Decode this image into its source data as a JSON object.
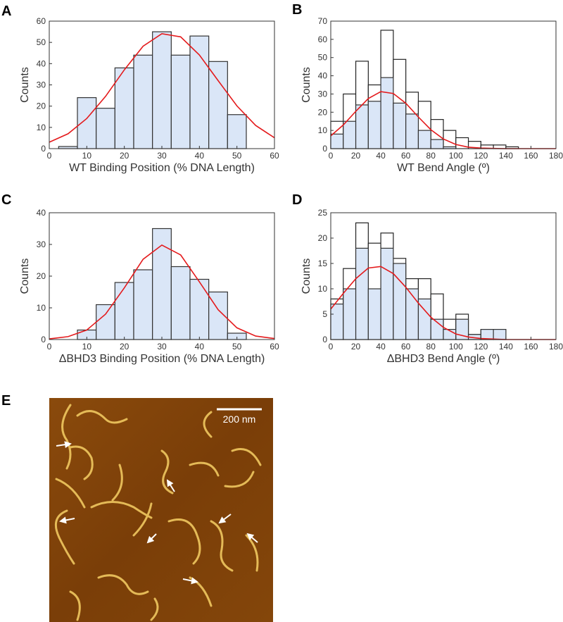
{
  "chart_data": [
    {
      "type": "histogram",
      "panel": "A",
      "xlabel": "WT Binding Position (% DNA Length)",
      "ylabel": "Counts",
      "bins": [
        2.5,
        7.5,
        12.5,
        17.5,
        22.5,
        27.5,
        32.5,
        37.5,
        42.5,
        47.5,
        52.5
      ],
      "series": [
        {
          "color": "#dae6f7",
          "edgecolor": "#333333",
          "values": [
            1,
            24,
            19,
            38,
            44,
            55,
            44,
            53,
            41,
            16
          ]
        }
      ],
      "fit": {
        "color": "#e41a1c",
        "x": [
          0,
          5,
          10,
          15,
          20,
          25,
          30,
          35,
          40,
          45,
          50,
          55,
          60
        ],
        "values": [
          3.0,
          7.0,
          14.2,
          24.6,
          37.1,
          48.2,
          54.1,
          52.6,
          44.1,
          32.0,
          20.1,
          10.9,
          5.1
        ]
      },
      "xlim": [
        0,
        60
      ],
      "ylim": [
        0,
        60
      ],
      "xticks": [
        0,
        10,
        20,
        30,
        40,
        50,
        60
      ],
      "yticks": [
        0,
        10,
        20,
        30,
        40,
        50,
        60
      ]
    },
    {
      "type": "histogram",
      "panel": "B",
      "xlabel": "WT Bend Angle (º)",
      "ylabel": "Counts",
      "bins": [
        0,
        10,
        20,
        30,
        40,
        50,
        60,
        70,
        80,
        90,
        100,
        110,
        120,
        130,
        140,
        150,
        160,
        170,
        180
      ],
      "series": [
        {
          "color": "#ffffff",
          "edgecolor": "#222222",
          "values": [
            15,
            30,
            48,
            35,
            65,
            49,
            31,
            26,
            16,
            10,
            6,
            4,
            2,
            2,
            1,
            0,
            0,
            0
          ]
        },
        {
          "color": "#dae6f7",
          "edgecolor": "#333333",
          "values": [
            8,
            15,
            24,
            26,
            39,
            25,
            19,
            10,
            5,
            1,
            0,
            0,
            0,
            0,
            0,
            0,
            0,
            0
          ]
        }
      ],
      "fit": {
        "color": "#e41a1c",
        "x": [
          0,
          10,
          20,
          30,
          40,
          50,
          60,
          70,
          80,
          90,
          100,
          110,
          120,
          130,
          140,
          150,
          160,
          170,
          180
        ],
        "values": [
          7.0,
          13.0,
          20.5,
          27.5,
          31.3,
          30.3,
          24.9,
          17.4,
          10.4,
          5.3,
          2.3,
          0.8,
          0.3,
          0.1,
          0,
          0,
          0,
          0,
          0
        ]
      },
      "xlim": [
        0,
        180
      ],
      "ylim": [
        0,
        70
      ],
      "xticks": [
        0,
        20,
        40,
        60,
        80,
        100,
        120,
        140,
        160,
        180
      ],
      "yticks": [
        0,
        10,
        20,
        30,
        40,
        50,
        60,
        70
      ]
    },
    {
      "type": "histogram",
      "panel": "C",
      "xlabel": "ΔBHD3 Binding Position (% DNA Length)",
      "ylabel": "Counts",
      "bins": [
        7.5,
        12.5,
        17.5,
        22.5,
        27.5,
        32.5,
        37.5,
        42.5,
        47.5,
        52.5
      ],
      "series": [
        {
          "color": "#dae6f7",
          "edgecolor": "#333333",
          "values": [
            3,
            11,
            18,
            22,
            35,
            23,
            19,
            15,
            2
          ]
        }
      ],
      "fit": {
        "color": "#e41a1c",
        "x": [
          0,
          5,
          10,
          15,
          20,
          25,
          30,
          35,
          40,
          45,
          50,
          55,
          60
        ],
        "values": [
          0.2,
          0.9,
          3.0,
          8.0,
          16.3,
          25.3,
          29.8,
          26.7,
          18.2,
          9.4,
          3.7,
          1.1,
          0.3
        ]
      },
      "xlim": [
        0,
        60
      ],
      "ylim": [
        0,
        40
      ],
      "xticks": [
        0,
        10,
        20,
        30,
        40,
        50,
        60
      ],
      "yticks": [
        0,
        10,
        20,
        30,
        40
      ]
    },
    {
      "type": "histogram",
      "panel": "D",
      "xlabel": "ΔBHD3 Bend Angle (º)",
      "ylabel": "Counts",
      "bins": [
        0,
        10,
        20,
        30,
        40,
        50,
        60,
        70,
        80,
        90,
        100,
        110,
        120,
        130,
        140,
        150,
        160,
        170,
        180
      ],
      "series": [
        {
          "color": "#ffffff",
          "edgecolor": "#222222",
          "values": [
            8,
            14,
            23,
            19,
            21,
            16,
            12,
            12,
            9,
            4,
            5,
            1,
            2,
            2,
            0,
            0,
            0,
            0
          ]
        },
        {
          "color": "#dae6f7",
          "edgecolor": "#333333",
          "values": [
            7,
            10,
            18,
            10,
            18,
            15,
            10,
            8,
            4,
            2,
            4,
            1,
            2,
            2,
            0,
            0,
            0,
            0
          ]
        }
      ],
      "fit": {
        "color": "#e41a1c",
        "x": [
          0,
          10,
          20,
          30,
          40,
          50,
          60,
          70,
          80,
          90,
          100,
          110,
          120,
          130,
          140,
          150,
          160,
          170,
          180
        ],
        "values": [
          6.0,
          9.1,
          12.0,
          14.1,
          14.4,
          13.0,
          10.3,
          7.2,
          4.4,
          2.4,
          1.1,
          0.5,
          0.2,
          0.1,
          0,
          0,
          0,
          0,
          0
        ]
      },
      "xlim": [
        0,
        180
      ],
      "ylim": [
        0,
        25
      ],
      "xticks": [
        0,
        20,
        40,
        60,
        80,
        100,
        120,
        140,
        160,
        180
      ],
      "yticks": [
        0,
        5,
        10,
        15,
        20,
        25
      ]
    }
  ],
  "panel_e": {
    "label": "E",
    "scale_bar": "200 nm"
  }
}
